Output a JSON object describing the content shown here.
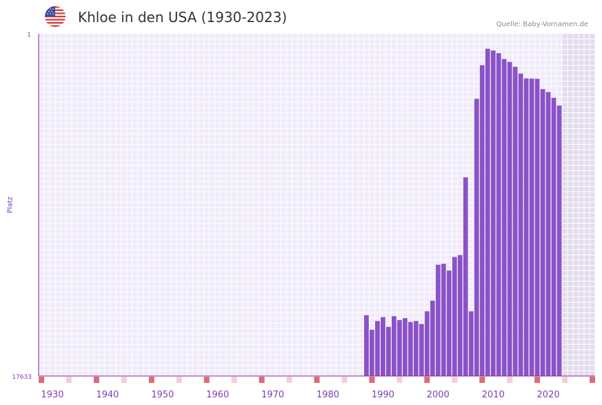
{
  "header": {
    "title": "Khloe in den USA (1930-2023)",
    "source": "Quelle: Baby-Vornamen.de",
    "flag_icon": "us-flag-icon"
  },
  "colors": {
    "bar": "#8b52c8",
    "plot_bg": "#f0ebfa",
    "grid": "#ffffff",
    "shade": "#e2dcee",
    "axis": "#8a2a8a",
    "tick_text": "#7b3fb0",
    "marker_strong": "#e06a7a",
    "marker_light": "#f5cfd6"
  },
  "chart_data": {
    "type": "bar",
    "title": "Khloe in den USA (1930-2023)",
    "xlabel": "",
    "ylabel": "Platz",
    "y_axis_inverted": true,
    "ylim": [
      1,
      17633
    ],
    "y_tick_labels": [
      "1",
      "17633"
    ],
    "xlim": [
      1928,
      2029
    ],
    "x_tick_values": [
      1930,
      1940,
      1950,
      1960,
      1970,
      1980,
      1990,
      2000,
      2010,
      2020
    ],
    "x_tick_labels": [
      "1930",
      "1940",
      "1950",
      "1960",
      "1970",
      "1980",
      "1990",
      "2000",
      "2010",
      "2020"
    ],
    "shaded_future_from": 2023,
    "series": [
      {
        "name": "Platz",
        "years": [
          1987,
          1988,
          1989,
          1990,
          1991,
          1992,
          1993,
          1994,
          1995,
          1996,
          1997,
          1998,
          1999,
          2000,
          2001,
          2002,
          2003,
          2004,
          2005,
          2006,
          2007,
          2008,
          2009,
          2010,
          2011,
          2012,
          2013,
          2014,
          2015,
          2016,
          2017,
          2018,
          2019,
          2020,
          2021,
          2022
        ],
        "values": [
          14500,
          15250,
          14800,
          14600,
          15100,
          14550,
          14750,
          14650,
          14850,
          14800,
          14950,
          14300,
          13750,
          11900,
          11850,
          12200,
          11500,
          11400,
          7400,
          14300,
          3350,
          1620,
          770,
          860,
          1000,
          1300,
          1450,
          1700,
          2050,
          2300,
          2310,
          2320,
          2850,
          3000,
          3300,
          3700
        ]
      }
    ]
  }
}
